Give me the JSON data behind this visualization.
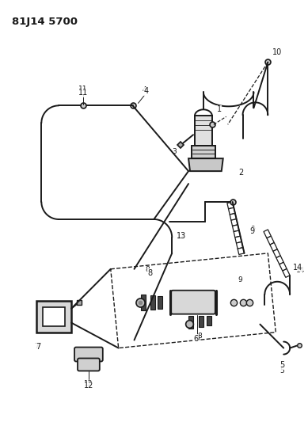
{
  "title": "81J14 5700",
  "bg": "#ffffff",
  "lc": "#1a1a1a",
  "fig_w": 3.89,
  "fig_h": 5.33,
  "dpi": 100
}
